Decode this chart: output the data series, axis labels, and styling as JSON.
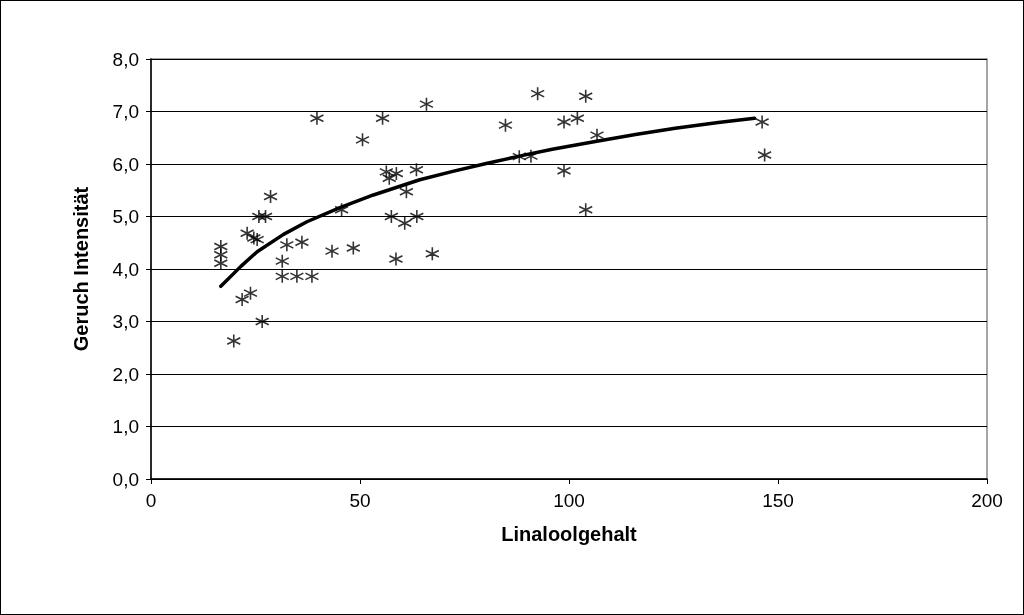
{
  "chart_data": {
    "type": "scatter",
    "xlabel": "Linaloolgehalt",
    "ylabel": "Geruch Intensität",
    "xlim": [
      0,
      200
    ],
    "xticks": [
      0,
      50,
      100,
      150,
      200
    ],
    "ylim": [
      0,
      8
    ],
    "yticks": [
      {
        "value": 0,
        "label": "0,0"
      },
      {
        "value": 1,
        "label": "1,0"
      },
      {
        "value": 2,
        "label": "2,0"
      },
      {
        "value": 3,
        "label": "3,0"
      },
      {
        "value": 4,
        "label": "4,0"
      },
      {
        "value": 5,
        "label": "5,0"
      },
      {
        "value": 6,
        "label": "6,0"
      },
      {
        "value": 7,
        "label": "7,0"
      },
      {
        "value": 8,
        "label": "8,0"
      }
    ],
    "grid": "y",
    "series": [
      {
        "color": "#000000",
        "marker": "cross",
        "x": [
          16.7,
          16.7,
          16.7,
          19.8,
          21.8,
          23.8,
          23.0,
          24.6,
          25.4,
          25.8,
          27.4,
          26.6,
          28.6,
          31.4,
          31.4,
          32.5,
          34.9,
          36.1,
          38.5,
          39.7,
          43.3,
          45.6,
          48.4,
          50.6,
          55.4,
          56.3,
          57.0,
          58.7,
          57.5,
          58.6,
          60.7,
          61.1,
          63.5,
          63.6,
          65.9,
          67.3,
          84.8,
          88.1,
          90.9,
          92.5,
          98.8,
          98.8,
          102.0,
          104.0,
          104.0,
          106.7,
          146.2,
          146.8
        ],
        "values": [
          4.43,
          4.27,
          4.11,
          2.63,
          3.42,
          3.54,
          4.68,
          4.59,
          4.56,
          5.0,
          5.0,
          3.0,
          5.38,
          4.15,
          3.86,
          4.46,
          3.86,
          4.51,
          3.86,
          6.87,
          4.34,
          5.13,
          4.4,
          6.46,
          6.87,
          5.85,
          5.73,
          5.82,
          5.0,
          4.19,
          4.87,
          5.47,
          5.89,
          5.0,
          7.14,
          4.29,
          6.74,
          6.14,
          6.15,
          7.34,
          6.8,
          5.87,
          6.87,
          7.29,
          5.13,
          6.55,
          6.8,
          6.17
        ]
      },
      {
        "type": "line",
        "color": "#000000",
        "marker": "none",
        "line_style": "solid",
        "x": [
          16.7,
          21.5,
          25.4,
          31.7,
          37.3,
          45.2,
          53.2,
          64.3,
          72.2,
          80.2,
          88.1,
          96.0,
          106.3,
          115.9,
          125.4,
          135.7,
          144.4
        ],
        "values": [
          3.67,
          4.05,
          4.33,
          4.66,
          4.9,
          5.17,
          5.41,
          5.7,
          5.86,
          6.01,
          6.15,
          6.28,
          6.43,
          6.56,
          6.68,
          6.79,
          6.87
        ]
      }
    ]
  }
}
